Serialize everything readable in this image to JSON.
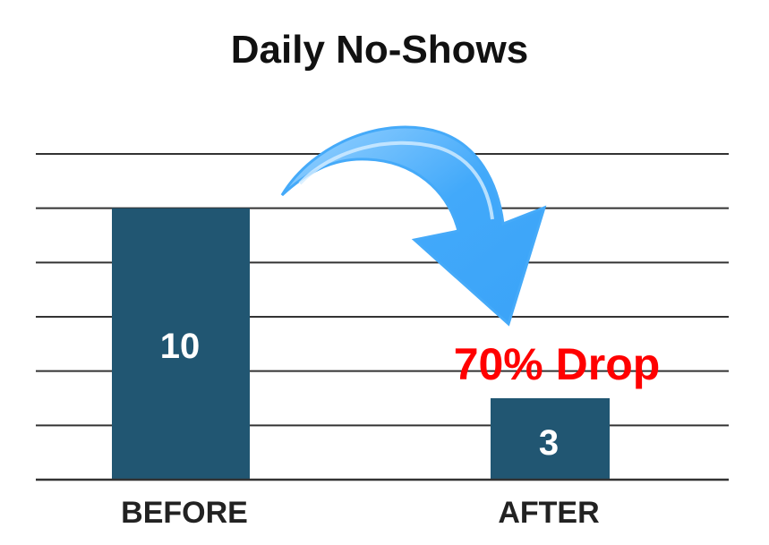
{
  "chart_data": {
    "type": "bar",
    "title": "Daily No-Shows",
    "categories": [
      "BEFORE",
      "AFTER"
    ],
    "values": [
      10,
      3
    ],
    "data_labels": [
      "10",
      "3"
    ],
    "ylim": [
      0,
      12
    ],
    "grid": true,
    "gridline_step": 2,
    "bar_color": "#215672",
    "annotation": {
      "text": "70% Drop",
      "color": "#ff0000",
      "arrow": "curved-arrow-down-right",
      "arrow_color": "#42a9fa"
    }
  }
}
